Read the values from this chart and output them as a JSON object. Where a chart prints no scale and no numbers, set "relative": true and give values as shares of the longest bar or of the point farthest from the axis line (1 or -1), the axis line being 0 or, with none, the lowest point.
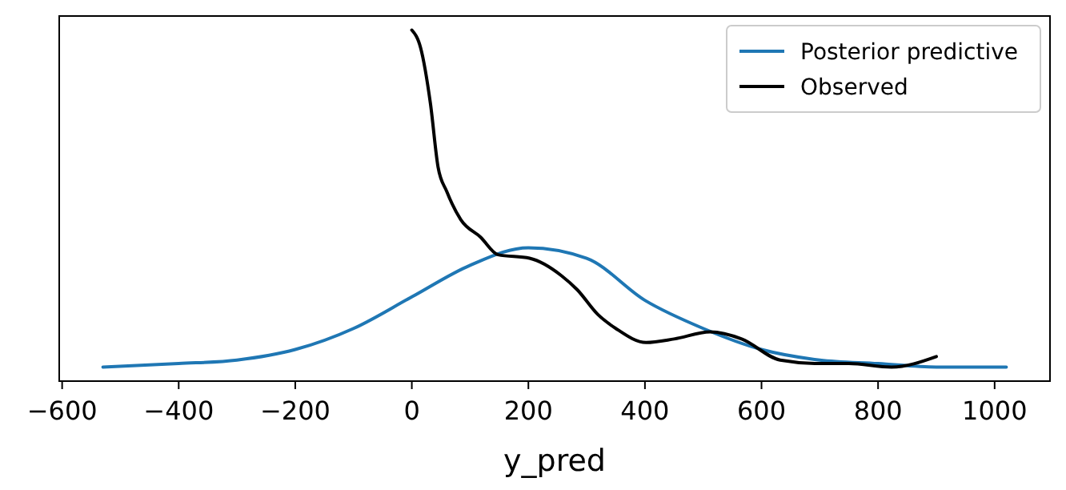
{
  "chart_data": {
    "type": "line",
    "relative": true,
    "xlabel": "y_pred",
    "xlim": [
      -605,
      1095
    ],
    "xticks": [
      {
        "value": -600,
        "label": "−600"
      },
      {
        "value": -400,
        "label": "−400"
      },
      {
        "value": -200,
        "label": "−200"
      },
      0,
      200,
      400,
      600,
      800,
      1000
    ],
    "tick_labels": "x",
    "legend": "top right",
    "grid": false,
    "marker": "none",
    "line_style": "solid",
    "series": [
      {
        "name": "Posterior predictive",
        "color": "#1f77b4",
        "x": [
          -530,
          -400,
          -300,
          -200,
          -100,
          0,
          100,
          200,
          300,
          400,
          500,
          600,
          700,
          800,
          900,
          1020
        ],
        "values": [
          0.04,
          0.05,
          0.06,
          0.09,
          0.15,
          0.24,
          0.33,
          0.38,
          0.35,
          0.23,
          0.15,
          0.09,
          0.06,
          0.05,
          0.04,
          0.04
        ]
      },
      {
        "name": "Observed",
        "color": "#000000",
        "x": [
          0,
          15,
          32,
          45,
          60,
          84,
          118,
          148,
          202,
          257,
          284,
          319,
          350,
          402,
          450,
          512,
          566,
          632,
          700,
          750,
          823,
          900
        ],
        "values": [
          1,
          0.95,
          0.79,
          0.61,
          0.54,
          0.46,
          0.41,
          0.36,
          0.35,
          0.3,
          0.26,
          0.19,
          0.15,
          0.11,
          0.12,
          0.14,
          0.12,
          0.06,
          0.05,
          0.05,
          0.04,
          0.07
        ]
      }
    ]
  }
}
